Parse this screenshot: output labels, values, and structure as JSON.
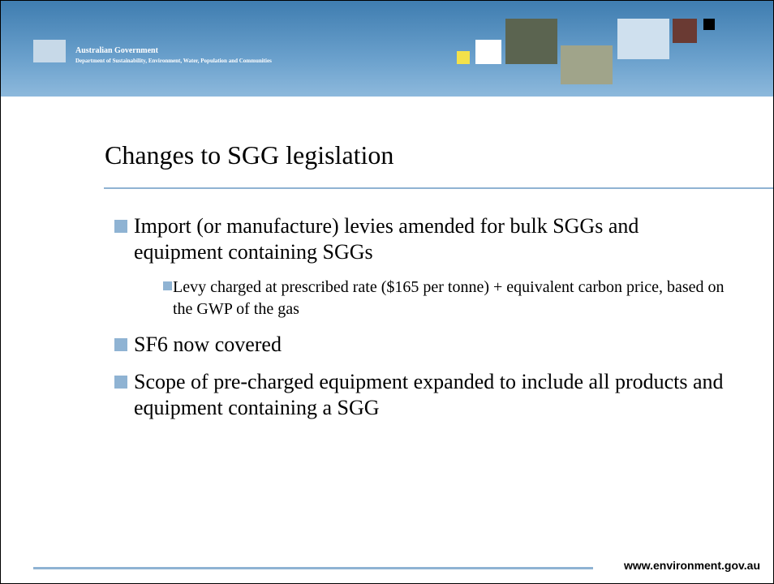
{
  "header": {
    "org": "Australian Government",
    "department": "Department of Sustainability, Environment, Water, Population and Communities"
  },
  "title": "Changes to SGG legislation",
  "bullets": [
    {
      "text": "Import (or manufacture) levies amended for bulk SGGs and equipment containing SGGs",
      "sub": [
        "Levy charged at prescribed rate ($165 per tonne) + equivalent carbon price, based on the GWP of the gas"
      ]
    },
    {
      "text": "SF6 now covered",
      "sub": []
    },
    {
      "text": "Scope of pre-charged equipment expanded to include all products and equipment containing a SGG",
      "sub": []
    }
  ],
  "footer": "www.environment.gov.au"
}
